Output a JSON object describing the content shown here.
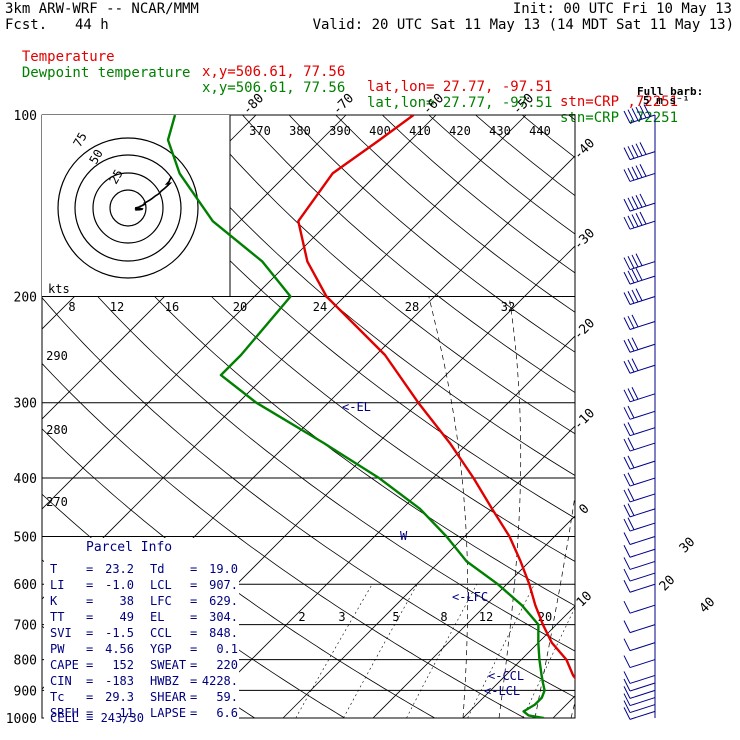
{
  "header": {
    "model": "3km ARW-WRF -- NCAR/MMM",
    "init": "Init: 00 UTC Fri 10 May 13",
    "fcst_label": "Fcst.",
    "fcst_value": "44 h",
    "valid": "Valid: 20 UTC Sat 11 May 13 (14 MDT Sat 11 May 13)",
    "temp_line": {
      "label": "Temperature",
      "xy": "x,y=506.61, 77.56",
      "latlon": "lat,lon= 27.77, -97.51",
      "stn": "stn=CRP ,72251"
    },
    "dew_line": {
      "label": "Dewpoint temperature",
      "xy": "x,y=506.61, 77.56",
      "latlon": "lat,lon= 27.77, -97.51",
      "stn": "stn=CRP ,72251"
    }
  },
  "wind_key": {
    "line1": "Full barb:",
    "line2": "5 m s⁻¹"
  },
  "hodograph": {
    "units_label": "kts",
    "ring_labels": [
      "75",
      "50",
      "25"
    ]
  },
  "parcel_info": {
    "title": "Parcel Info",
    "rows": [
      {
        "l1": "T",
        "v1": "23.2",
        "l2": "Td",
        "v2": "19.0"
      },
      {
        "l1": "LI",
        "v1": "-1.0",
        "l2": "LCL",
        "v2": "907."
      },
      {
        "l1": "K",
        "v1": "38",
        "l2": "LFC",
        "v2": "629."
      },
      {
        "l1": "TT",
        "v1": "49",
        "l2": "EL",
        "v2": "304."
      },
      {
        "l1": "SVI",
        "v1": "-1.5",
        "l2": "CCL",
        "v2": "848."
      },
      {
        "l1": "PW",
        "v1": "4.56",
        "l2": "YGP",
        "v2": "0.1"
      },
      {
        "l1": "CAPE",
        "v1": "152",
        "l2": "SWEAT",
        "v2": "220"
      },
      {
        "l1": "CIN",
        "v1": "-183",
        "l2": "HWBZ",
        "v2": "4228."
      },
      {
        "l1": "Tc",
        "v1": "29.3",
        "l2": "SHEAR",
        "v2": "59."
      },
      {
        "l1": "SREH",
        "v1": "11",
        "l2": "LAPSE",
        "v2": "6.6"
      }
    ],
    "cell": "CELL = 243/30"
  },
  "chart_data": {
    "type": "line",
    "subtype": "skew-T log-P diagram",
    "pressure_levels": [
      100,
      200,
      300,
      400,
      500,
      600,
      700,
      800,
      900,
      1000
    ],
    "temperature_ticks": [
      -80,
      -70,
      -60,
      -50,
      -40,
      -30,
      -20,
      -10,
      0,
      10,
      20,
      30,
      40
    ],
    "theta_labels": [
      370,
      380,
      390,
      400,
      410,
      420,
      430,
      440
    ],
    "theta_labels_left": [
      290,
      280,
      270
    ],
    "hodo_speed_labels": [
      8,
      12,
      16,
      20,
      24,
      28,
      32
    ],
    "mixing_ratio_labels": [
      2,
      3,
      5,
      8,
      12,
      20
    ],
    "series": [
      {
        "name": "Temperature",
        "color": "#e00000",
        "points": [
          [
            1000,
            24.0
          ],
          [
            975,
            22.5
          ],
          [
            950,
            22.0
          ],
          [
            925,
            21.0
          ],
          [
            900,
            20.0
          ],
          [
            875,
            19.0
          ],
          [
            850,
            17.5
          ],
          [
            800,
            15.0
          ],
          [
            750,
            11.5
          ],
          [
            700,
            8.5
          ],
          [
            650,
            5.5
          ],
          [
            600,
            2.5
          ],
          [
            550,
            -1.0
          ],
          [
            500,
            -5.0
          ],
          [
            450,
            -10.0
          ],
          [
            400,
            -15.5
          ],
          [
            350,
            -22.0
          ],
          [
            300,
            -30.0
          ],
          [
            250,
            -39.0
          ],
          [
            200,
            -52.0
          ],
          [
            175,
            -58.0
          ],
          [
            150,
            -63.5
          ],
          [
            125,
            -65.0
          ],
          [
            110,
            -63.5
          ],
          [
            100,
            -62.5
          ]
        ]
      },
      {
        "name": "Dewpoint temperature",
        "color": "#008000",
        "points": [
          [
            1000,
            19.0
          ],
          [
            990,
            17.0
          ],
          [
            975,
            16.0
          ],
          [
            950,
            16.5
          ],
          [
            925,
            16.5
          ],
          [
            900,
            16.0
          ],
          [
            875,
            15.0
          ],
          [
            850,
            14.0
          ],
          [
            800,
            12.0
          ],
          [
            750,
            10.0
          ],
          [
            700,
            8.0
          ],
          [
            650,
            4.0
          ],
          [
            600,
            -1.0
          ],
          [
            550,
            -7.0
          ],
          [
            500,
            -12.0
          ],
          [
            450,
            -18.0
          ],
          [
            400,
            -26.0
          ],
          [
            350,
            -36.0
          ],
          [
            300,
            -48.0
          ],
          [
            270,
            -55.0
          ],
          [
            250,
            -55.0
          ],
          [
            200,
            -56.0
          ],
          [
            175,
            -63.0
          ],
          [
            150,
            -73.0
          ],
          [
            125,
            -82.0
          ],
          [
            110,
            -87.0
          ],
          [
            100,
            -89.0
          ]
        ]
      }
    ],
    "annotations": [
      "<-EL",
      "<-LFC",
      "<-CCL",
      "<-LCL",
      "W"
    ],
    "wind_profile_m_s": [
      [
        100,
        30
      ],
      [
        115,
        28
      ],
      [
        125,
        27
      ],
      [
        140,
        25
      ],
      [
        150,
        26
      ],
      [
        175,
        24
      ],
      [
        185,
        22
      ],
      [
        200,
        20
      ],
      [
        220,
        19
      ],
      [
        240,
        18
      ],
      [
        260,
        16
      ],
      [
        290,
        15
      ],
      [
        310,
        14
      ],
      [
        330,
        13
      ],
      [
        350,
        12
      ],
      [
        375,
        11
      ],
      [
        400,
        10
      ],
      [
        425,
        10
      ],
      [
        450,
        10
      ],
      [
        475,
        10
      ],
      [
        500,
        9
      ],
      [
        525,
        9
      ],
      [
        550,
        8
      ],
      [
        575,
        8
      ],
      [
        600,
        7
      ],
      [
        650,
        6
      ],
      [
        700,
        6
      ],
      [
        750,
        6
      ],
      [
        800,
        6
      ],
      [
        850,
        7
      ],
      [
        875,
        8
      ],
      [
        900,
        9
      ],
      [
        925,
        9
      ],
      [
        950,
        8
      ],
      [
        975,
        6
      ]
    ]
  }
}
